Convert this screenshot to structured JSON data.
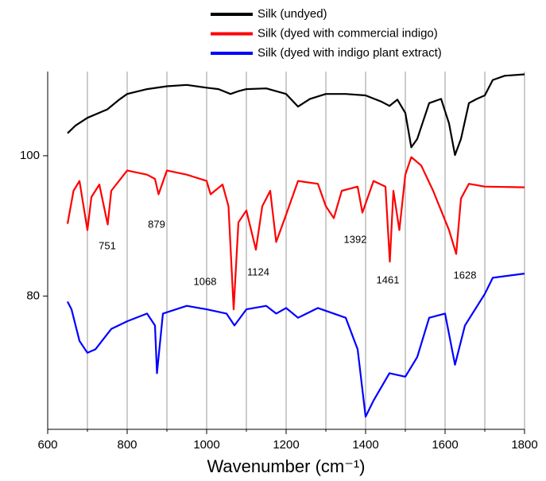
{
  "chart_data": {
    "type": "line",
    "x_label": "Wavenumber (cm⁻¹)",
    "xlim": [
      600,
      1800
    ],
    "xticks": [
      600,
      800,
      1000,
      1200,
      1400,
      1600,
      1800
    ],
    "xminor_ticks": [
      700,
      900,
      1100,
      1300,
      1500,
      1700
    ],
    "ylim": [
      61,
      112
    ],
    "yticks": [
      80,
      100
    ],
    "grid": true,
    "legend": "top",
    "annotations": [
      "751",
      "879",
      "1068",
      "1124",
      "1392",
      "1461",
      "1628"
    ],
    "series": [
      {
        "name": "Silk (undyed)",
        "color": "#000000",
        "x": [
          650,
          670,
          700,
          750,
          780,
          800,
          850,
          900,
          950,
          1000,
          1030,
          1060,
          1080,
          1100,
          1150,
          1200,
          1230,
          1260,
          1300,
          1350,
          1400,
          1440,
          1460,
          1480,
          1500,
          1515,
          1530,
          1560,
          1590,
          1610,
          1625,
          1640,
          1660,
          1680,
          1700,
          1720,
          1750,
          1800
        ],
        "values": [
          103.2,
          104.3,
          105.4,
          106.6,
          108.0,
          108.8,
          109.5,
          109.9,
          110.1,
          109.7,
          109.5,
          108.8,
          109.2,
          109.5,
          109.6,
          108.8,
          107.0,
          108.1,
          108.8,
          108.8,
          108.6,
          107.7,
          107.1,
          108.0,
          106.1,
          101.2,
          102.4,
          107.5,
          108.1,
          104.6,
          100.1,
          102.4,
          107.5,
          108.1,
          108.6,
          110.8,
          111.4,
          111.6
        ]
      },
      {
        "name": "Silk (dyed with commercial indigo)",
        "color": "#ff0000",
        "x": [
          650,
          665,
          680,
          700,
          710,
          730,
          751,
          760,
          800,
          850,
          870,
          879,
          900,
          950,
          1000,
          1010,
          1040,
          1055,
          1068,
          1080,
          1100,
          1124,
          1140,
          1160,
          1175,
          1200,
          1230,
          1280,
          1300,
          1320,
          1340,
          1380,
          1392,
          1420,
          1450,
          1461,
          1470,
          1485,
          1500,
          1515,
          1540,
          1570,
          1590,
          1610,
          1628,
          1640,
          1660,
          1700,
          1800
        ],
        "values": [
          90.3,
          95.0,
          96.4,
          89.4,
          94.1,
          95.9,
          90.2,
          95.0,
          97.9,
          97.3,
          96.7,
          94.5,
          97.9,
          97.3,
          96.4,
          94.5,
          95.9,
          92.8,
          78.1,
          90.5,
          92.2,
          86.6,
          92.8,
          95.0,
          87.7,
          91.6,
          96.4,
          96.0,
          92.8,
          91.1,
          95.0,
          95.6,
          91.9,
          96.4,
          95.6,
          84.9,
          95.0,
          89.4,
          97.3,
          99.8,
          98.6,
          95.0,
          92.2,
          89.4,
          86.0,
          93.9,
          96.0,
          95.6,
          95.5
        ]
      },
      {
        "name": "Silk (dyed with indigo plant extract)",
        "color": "#0000ff",
        "x": [
          650,
          660,
          680,
          700,
          720,
          760,
          800,
          850,
          870,
          875,
          890,
          950,
          1000,
          1050,
          1070,
          1100,
          1150,
          1175,
          1200,
          1230,
          1280,
          1320,
          1350,
          1380,
          1400,
          1420,
          1460,
          1500,
          1530,
          1560,
          1600,
          1625,
          1650,
          1700,
          1720,
          1800
        ],
        "values": [
          79.2,
          78.1,
          73.6,
          71.9,
          72.4,
          75.3,
          76.4,
          77.5,
          75.8,
          69.0,
          77.5,
          78.6,
          78.1,
          77.5,
          75.8,
          78.1,
          78.6,
          77.5,
          78.3,
          76.9,
          78.3,
          77.5,
          76.9,
          72.4,
          62.8,
          65.1,
          69.0,
          68.5,
          71.3,
          76.9,
          77.5,
          70.2,
          75.8,
          80.3,
          82.6,
          83.2
        ]
      }
    ]
  }
}
